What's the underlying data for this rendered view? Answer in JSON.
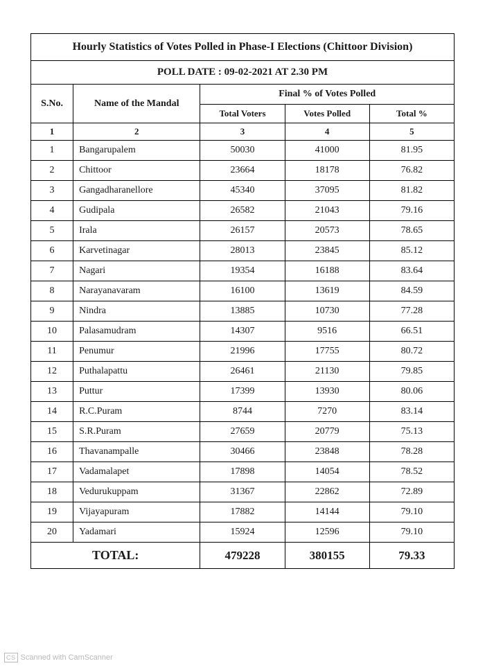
{
  "title": "Hourly Statistics of Votes Polled in Phase-I Elections (Chittoor Division)",
  "subtitle": "POLL DATE : 09-02-2021 AT 2.30 PM",
  "headers": {
    "sno": "S.No.",
    "name": "Name of the Mandal",
    "group": "Final % of Votes Polled",
    "total_voters": "Total Voters",
    "votes_polled": "Votes Polled",
    "total_pct": "Total %"
  },
  "colnums": {
    "c1": "1",
    "c2": "2",
    "c3": "3",
    "c4": "4",
    "c5": "5"
  },
  "rows": [
    {
      "sno": "1",
      "name": "Bangarupalem",
      "total_voters": "50030",
      "votes_polled": "41000",
      "pct": "81.95"
    },
    {
      "sno": "2",
      "name": "Chittoor",
      "total_voters": "23664",
      "votes_polled": "18178",
      "pct": "76.82"
    },
    {
      "sno": "3",
      "name": "Gangadharanellore",
      "total_voters": "45340",
      "votes_polled": "37095",
      "pct": "81.82"
    },
    {
      "sno": "4",
      "name": "Gudipala",
      "total_voters": "26582",
      "votes_polled": "21043",
      "pct": "79.16"
    },
    {
      "sno": "5",
      "name": "Irala",
      "total_voters": "26157",
      "votes_polled": "20573",
      "pct": "78.65"
    },
    {
      "sno": "6",
      "name": "Karvetinagar",
      "total_voters": "28013",
      "votes_polled": "23845",
      "pct": "85.12"
    },
    {
      "sno": "7",
      "name": "Nagari",
      "total_voters": "19354",
      "votes_polled": "16188",
      "pct": "83.64"
    },
    {
      "sno": "8",
      "name": "Narayanavaram",
      "total_voters": "16100",
      "votes_polled": "13619",
      "pct": "84.59"
    },
    {
      "sno": "9",
      "name": "Nindra",
      "total_voters": "13885",
      "votes_polled": "10730",
      "pct": "77.28"
    },
    {
      "sno": "10",
      "name": "Palasamudram",
      "total_voters": "14307",
      "votes_polled": "9516",
      "pct": "66.51"
    },
    {
      "sno": "11",
      "name": "Penumur",
      "total_voters": "21996",
      "votes_polled": "17755",
      "pct": "80.72"
    },
    {
      "sno": "12",
      "name": "Puthalapattu",
      "total_voters": "26461",
      "votes_polled": "21130",
      "pct": "79.85"
    },
    {
      "sno": "13",
      "name": "Puttur",
      "total_voters": "17399",
      "votes_polled": "13930",
      "pct": "80.06"
    },
    {
      "sno": "14",
      "name": "R.C.Puram",
      "total_voters": "8744",
      "votes_polled": "7270",
      "pct": "83.14"
    },
    {
      "sno": "15",
      "name": "S.R.Puram",
      "total_voters": "27659",
      "votes_polled": "20779",
      "pct": "75.13"
    },
    {
      "sno": "16",
      "name": "Thavanampalle",
      "total_voters": "30466",
      "votes_polled": "23848",
      "pct": "78.28"
    },
    {
      "sno": "17",
      "name": "Vadamalapet",
      "total_voters": "17898",
      "votes_polled": "14054",
      "pct": "78.52"
    },
    {
      "sno": "18",
      "name": "Vedurukuppam",
      "total_voters": "31367",
      "votes_polled": "22862",
      "pct": "72.89"
    },
    {
      "sno": "19",
      "name": "Vijayapuram",
      "total_voters": "17882",
      "votes_polled": "14144",
      "pct": "79.10"
    },
    {
      "sno": "20",
      "name": "Yadamari",
      "total_voters": "15924",
      "votes_polled": "12596",
      "pct": "79.10"
    }
  ],
  "total": {
    "label": "TOTAL:",
    "total_voters": "479228",
    "votes_polled": "380155",
    "pct": "79.33"
  },
  "footer": {
    "cs": "CS",
    "scanned": "Scanned with CamScanner"
  }
}
